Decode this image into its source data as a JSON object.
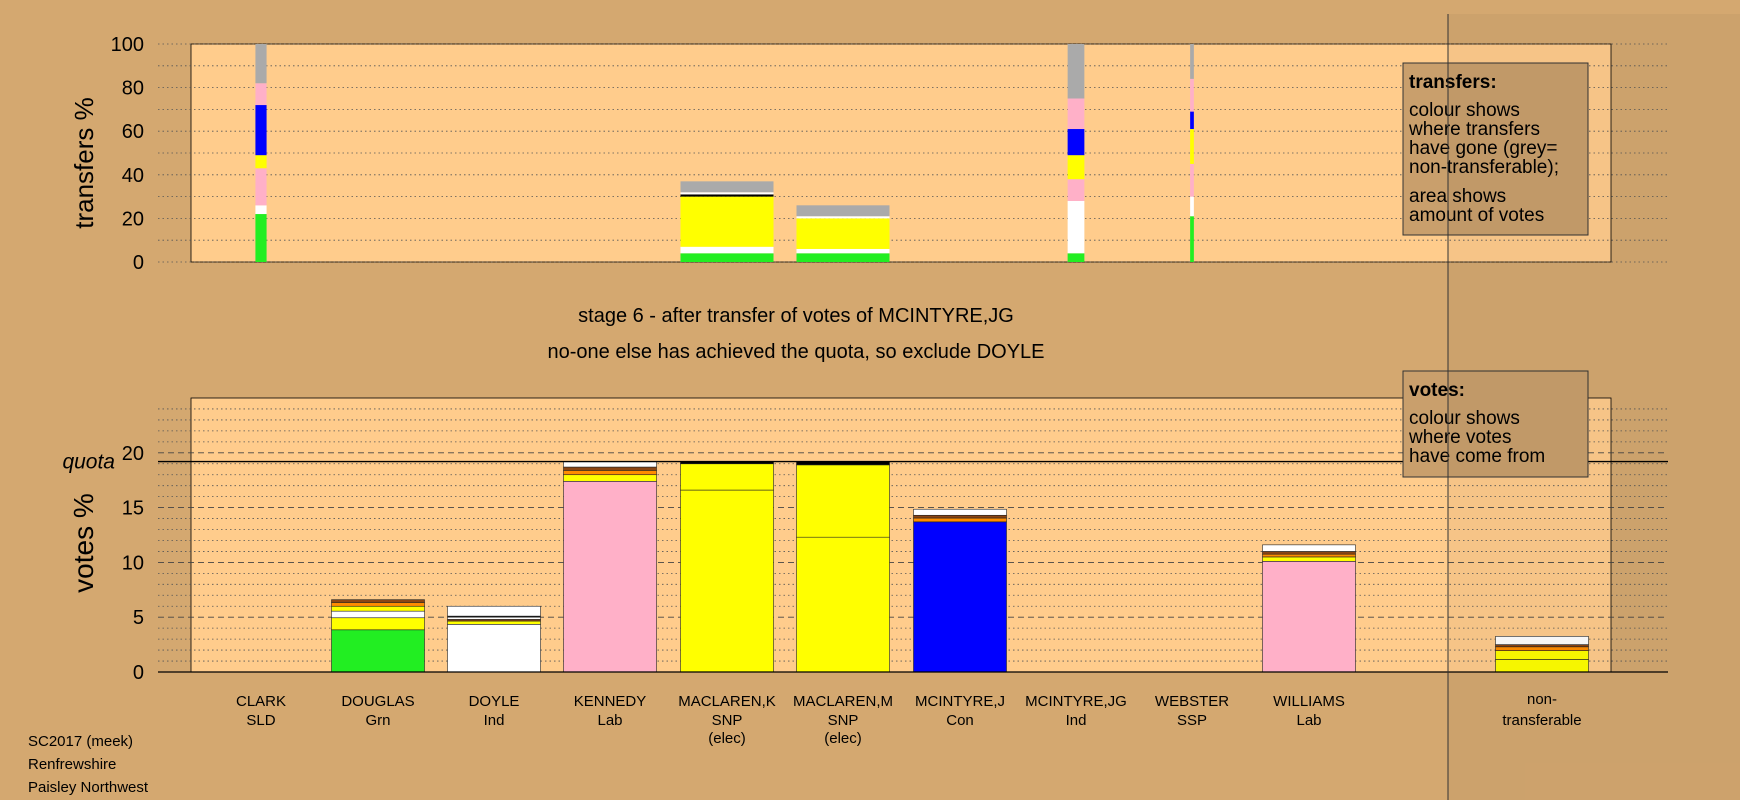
{
  "chart_data": {
    "type": "bar",
    "colors": {
      "background": "#d4a870",
      "plot_bg": "#ffcc8c",
      "SLD": "#ffff00",
      "Grn": "#22ee22",
      "Ind": "#ffffff",
      "Lab": "#ffb0c8",
      "SNP": "#ffff00",
      "Con": "#0000ff",
      "SSP": "#ff3333",
      "orange": "#ff8c00",
      "brown": "#8b4513",
      "nontransferable": "#aaaaaa",
      "black": "#000000"
    },
    "candidates": [
      {
        "name": "CLARK",
        "party": "SLD",
        "elected": ""
      },
      {
        "name": "DOUGLAS",
        "party": "Grn",
        "elected": ""
      },
      {
        "name": "DOYLE",
        "party": "Ind",
        "elected": ""
      },
      {
        "name": "KENNEDY",
        "party": "Lab",
        "elected": ""
      },
      {
        "name": "MACLAREN,K",
        "party": "SNP",
        "elected": "(elec)"
      },
      {
        "name": "MACLAREN,M",
        "party": "SNP",
        "elected": "(elec)"
      },
      {
        "name": "MCINTYRE,J",
        "party": "Con",
        "elected": ""
      },
      {
        "name": "MCINTYRE,JG",
        "party": "Ind",
        "elected": ""
      },
      {
        "name": "WEBSTER",
        "party": "SSP",
        "elected": ""
      },
      {
        "name": "WILLIAMS",
        "party": "Lab",
        "elected": ""
      }
    ],
    "nontransferable": {
      "line1": "non-",
      "line2": "transferable"
    },
    "top": {
      "ylabel": "transfers %",
      "ylim": [
        0,
        100
      ],
      "ticks": [
        0,
        20,
        40,
        60,
        80,
        100
      ],
      "legend": {
        "title": "transfers:",
        "lines": [
          "colour shows",
          "where transfers",
          "have gone (grey=",
          "non-transferable);"
        ],
        "lines2": [
          "area shows",
          "amount of votes"
        ]
      },
      "bars": [
        {
          "index": 0,
          "width_frac": 0.12,
          "segments": [
            {
              "v": 22,
              "c": "Grn"
            },
            {
              "v": 4,
              "c": "Ind"
            },
            {
              "v": 17,
              "c": "Lab"
            },
            {
              "v": 6,
              "c": "SNP"
            },
            {
              "v": 23,
              "c": "Con"
            },
            {
              "v": 10,
              "c": "Lab"
            },
            {
              "v": 18,
              "c": "nontransferable"
            }
          ]
        },
        {
          "index": 4,
          "width_frac": 1.0,
          "segments": [
            {
              "v": 4,
              "c": "Grn"
            },
            {
              "v": 3,
              "c": "Ind"
            },
            {
              "v": 23,
              "c": "SNP"
            },
            {
              "v": 1,
              "c": "black"
            },
            {
              "v": 1,
              "c": "Ind"
            },
            {
              "v": 5,
              "c": "nontransferable"
            }
          ]
        },
        {
          "index": 5,
          "width_frac": 1.0,
          "segments": [
            {
              "v": 4,
              "c": "Grn"
            },
            {
              "v": 2,
              "c": "Ind"
            },
            {
              "v": 14,
              "c": "SNP"
            },
            {
              "v": 1,
              "c": "Ind"
            },
            {
              "v": 5,
              "c": "nontransferable"
            }
          ]
        },
        {
          "index": 7,
          "width_frac": 0.18,
          "segments": [
            {
              "v": 4,
              "c": "Grn"
            },
            {
              "v": 24,
              "c": "Ind"
            },
            {
              "v": 10,
              "c": "Lab"
            },
            {
              "v": 11,
              "c": "SNP"
            },
            {
              "v": 12,
              "c": "Con"
            },
            {
              "v": 14,
              "c": "Lab"
            },
            {
              "v": 25,
              "c": "nontransferable"
            }
          ]
        },
        {
          "index": 8,
          "width_frac": 0.04,
          "segments": [
            {
              "v": 21,
              "c": "Grn"
            },
            {
              "v": 9,
              "c": "Ind"
            },
            {
              "v": 15,
              "c": "Lab"
            },
            {
              "v": 16,
              "c": "SNP"
            },
            {
              "v": 8,
              "c": "Con"
            },
            {
              "v": 15,
              "c": "Lab"
            },
            {
              "v": 16,
              "c": "nontransferable"
            }
          ]
        }
      ]
    },
    "bottom": {
      "ylabel": "votes %",
      "ylim": [
        0,
        25
      ],
      "ticks": [
        0,
        5,
        10,
        15,
        20
      ],
      "quota": 19.2,
      "quota_label": "quota",
      "legend": {
        "title": "votes:",
        "lines": [
          "colour shows",
          "where votes",
          "have come from"
        ]
      },
      "bars": [
        {
          "index": 1,
          "segments": [
            {
              "v": 3.85,
              "c": "Grn"
            },
            {
              "v": 1.1,
              "c": "SNP"
            },
            {
              "v": 0.6,
              "c": "Ind"
            },
            {
              "v": 0.45,
              "c": "SNP"
            },
            {
              "v": 0.35,
              "c": "orange"
            },
            {
              "v": 0.25,
              "c": "brown"
            }
          ]
        },
        {
          "index": 2,
          "segments": [
            {
              "v": 4.35,
              "c": "Ind"
            },
            {
              "v": 0.3,
              "c": "SNP"
            },
            {
              "v": 0.15,
              "c": "brown"
            },
            {
              "v": 0.2,
              "c": "Ind"
            },
            {
              "v": 0.1,
              "c": "black"
            },
            {
              "v": 0.9,
              "c": "Ind"
            }
          ]
        },
        {
          "index": 3,
          "segments": [
            {
              "v": 17.4,
              "c": "Lab"
            },
            {
              "v": 0.6,
              "c": "SNP"
            },
            {
              "v": 0.4,
              "c": "orange"
            },
            {
              "v": 0.3,
              "c": "brown"
            },
            {
              "v": 0.5,
              "c": "Ind"
            }
          ]
        },
        {
          "index": 4,
          "segments": [
            {
              "v": 16.6,
              "c": "SNP"
            },
            {
              "v": 2.4,
              "c": "SNP"
            },
            {
              "v": 0.2,
              "c": "black"
            }
          ]
        },
        {
          "index": 5,
          "segments": [
            {
              "v": 12.3,
              "c": "SNP"
            },
            {
              "v": 6.6,
              "c": "SNP"
            },
            {
              "v": 0.3,
              "c": "black"
            }
          ]
        },
        {
          "index": 6,
          "segments": [
            {
              "v": 13.7,
              "c": "Con"
            },
            {
              "v": 0.35,
              "c": "orange"
            },
            {
              "v": 0.25,
              "c": "brown"
            },
            {
              "v": 0.55,
              "c": "Ind"
            }
          ]
        },
        {
          "index": 9,
          "segments": [
            {
              "v": 10.1,
              "c": "Lab"
            },
            {
              "v": 0.4,
              "c": "SNP"
            },
            {
              "v": 0.25,
              "c": "orange"
            },
            {
              "v": 0.25,
              "c": "brown"
            },
            {
              "v": 0.6,
              "c": "Ind"
            }
          ]
        },
        {
          "index": 10,
          "segments": [
            {
              "v": 1.15,
              "c": "SNP"
            },
            {
              "v": 0.8,
              "c": "SNP"
            },
            {
              "v": 0.35,
              "c": "orange"
            },
            {
              "v": 0.2,
              "c": "brown"
            },
            {
              "v": 0.75,
              "c": "Ind"
            }
          ]
        }
      ]
    },
    "titles": [
      "stage 6 - after transfer of votes of MCINTYRE,JG",
      "no-one else has achieved the quota, so exclude DOYLE"
    ],
    "footer": [
      "SC2017 (meek)",
      "Renfrewshire",
      "Paisley Northwest"
    ]
  }
}
